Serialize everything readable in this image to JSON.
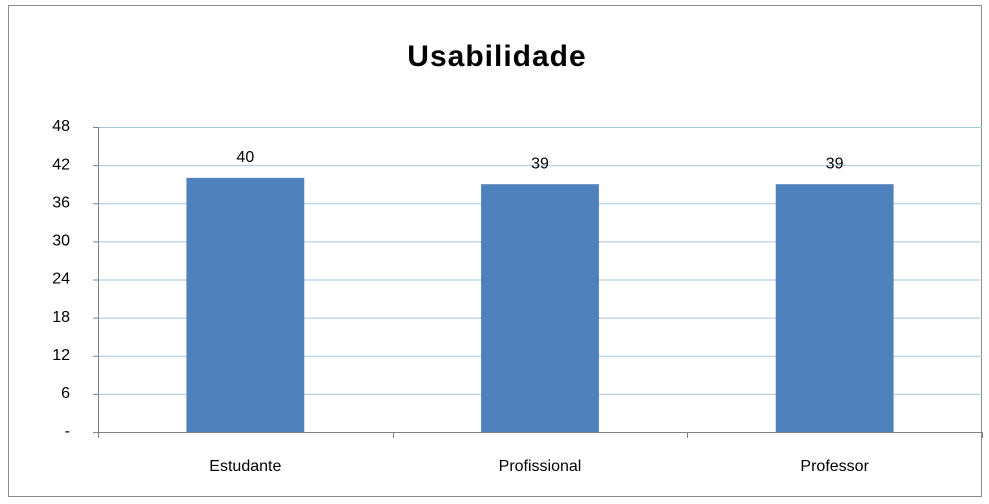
{
  "chart_data": {
    "type": "bar",
    "title": "Usabilidade",
    "categories": [
      "Estudante",
      "Profissional",
      "Professor"
    ],
    "values": [
      40,
      39,
      39
    ],
    "color": "#4f81bd",
    "ylim": [
      0,
      48
    ],
    "yticks": [
      {
        "value": 0,
        "label": "-"
      },
      6,
      12,
      18,
      24,
      30,
      36,
      42,
      48
    ],
    "grid": true
  }
}
